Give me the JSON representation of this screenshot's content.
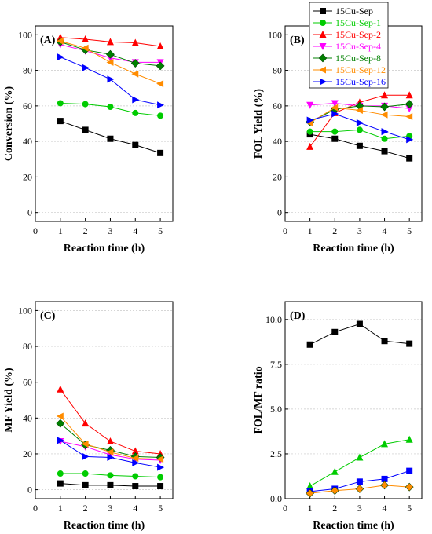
{
  "legend": [
    {
      "name": "15Cu-Sep",
      "color": "#000000",
      "marker": "square"
    },
    {
      "name": "15Cu-Sep-1",
      "color": "#00cc00",
      "marker": "circle"
    },
    {
      "name": "15Cu-Sep-2",
      "color": "#ff0000",
      "marker": "triangle-up"
    },
    {
      "name": "15Cu-Sep-4",
      "color": "#ff00ff",
      "marker": "triangle-down"
    },
    {
      "name": "15Cu-Sep-8",
      "color": "#008000",
      "marker": "diamond"
    },
    {
      "name": "15Cu-Sep-12",
      "color": "#ff8c00",
      "marker": "triangle-left"
    },
    {
      "name": "15Cu-Sep-16",
      "color": "#0000ff",
      "marker": "triangle-right"
    }
  ],
  "chart_data": [
    {
      "type": "line",
      "label": "(A)",
      "ylabel": "Conversion (%)",
      "xlabel": "Reaction time (h)",
      "xlim": [
        0,
        5.5
      ],
      "ylim": [
        -5,
        105
      ],
      "xticks": [
        0,
        1,
        2,
        3,
        4,
        5
      ],
      "yticks": [
        0,
        20,
        40,
        60,
        80,
        100
      ],
      "x": [
        1,
        2,
        3,
        4,
        5
      ],
      "series": [
        {
          "name": "15Cu-Sep",
          "values": [
            51.5,
            46.5,
            41.5,
            38,
            33.5
          ]
        },
        {
          "name": "15Cu-Sep-1",
          "values": [
            61.5,
            61,
            59.5,
            56,
            54.5
          ]
        },
        {
          "name": "15Cu-Sep-2",
          "values": [
            98.5,
            97.5,
            96,
            95.5,
            93.5
          ]
        },
        {
          "name": "15Cu-Sep-4",
          "values": [
            94.5,
            91,
            87,
            84.5,
            84.5
          ]
        },
        {
          "name": "15Cu-Sep-8",
          "values": [
            96,
            91.5,
            89,
            84,
            82.5
          ]
        },
        {
          "name": "15Cu-Sep-12",
          "values": [
            96.5,
            92.5,
            84.5,
            78,
            72.5
          ]
        },
        {
          "name": "15Cu-Sep-16",
          "values": [
            87.5,
            81.5,
            75,
            63.5,
            60.5
          ]
        }
      ]
    },
    {
      "type": "line",
      "label": "(B)",
      "ylabel": "FOL Yield (%)",
      "xlabel": "Reaction time (h)",
      "xlim": [
        0,
        5.5
      ],
      "ylim": [
        -5,
        105
      ],
      "xticks": [
        0,
        1,
        2,
        3,
        4,
        5
      ],
      "yticks": [
        0,
        20,
        40,
        60,
        80,
        100
      ],
      "x": [
        1,
        2,
        3,
        4,
        5
      ],
      "series": [
        {
          "name": "15Cu-Sep",
          "values": [
            44,
            41.5,
            37.5,
            34.5,
            30.5
          ]
        },
        {
          "name": "15Cu-Sep-1",
          "values": [
            45.5,
            45.5,
            46.5,
            41.5,
            43
          ]
        },
        {
          "name": "15Cu-Sep-2",
          "values": [
            37,
            56,
            62,
            66,
            66
          ]
        },
        {
          "name": "15Cu-Sep-4",
          "values": [
            60.5,
            61.5,
            60,
            60,
            58.5
          ]
        },
        {
          "name": "15Cu-Sep-8",
          "values": [
            51,
            58,
            60,
            59.5,
            61
          ]
        },
        {
          "name": "15Cu-Sep-12",
          "values": [
            50.5,
            59,
            57.5,
            55,
            54
          ]
        },
        {
          "name": "15Cu-Sep-16",
          "values": [
            52,
            55.5,
            50.5,
            45.5,
            41
          ]
        }
      ]
    },
    {
      "type": "line",
      "label": "(C)",
      "ylabel": "MF Yield (%)",
      "xlabel": "Reaction time (h)",
      "xlim": [
        0,
        5.5
      ],
      "ylim": [
        -5,
        105
      ],
      "xticks": [
        0,
        1,
        2,
        3,
        4,
        5
      ],
      "yticks": [
        0,
        20,
        40,
        60,
        80,
        100
      ],
      "x": [
        1,
        2,
        3,
        4,
        5
      ],
      "series": [
        {
          "name": "15Cu-Sep",
          "values": [
            3.5,
            2.5,
            2.5,
            2,
            2
          ]
        },
        {
          "name": "15Cu-Sep-1",
          "values": [
            9,
            9,
            8,
            7.5,
            7
          ]
        },
        {
          "name": "15Cu-Sep-2",
          "values": [
            56,
            37,
            27,
            21.5,
            20
          ]
        },
        {
          "name": "15Cu-Sep-4",
          "values": [
            27,
            24,
            19.5,
            17,
            16.5
          ]
        },
        {
          "name": "15Cu-Sep-8",
          "values": [
            37,
            25,
            22,
            18.5,
            18
          ]
        },
        {
          "name": "15Cu-Sep-12",
          "values": [
            41,
            25.5,
            21,
            17.5,
            17
          ]
        },
        {
          "name": "15Cu-Sep-16",
          "values": [
            27.5,
            18.5,
            18,
            15,
            12.5
          ]
        }
      ]
    },
    {
      "type": "line",
      "label": "(D)",
      "ylabel": "FOL/MF ratio",
      "xlabel": "Reaction time (h)",
      "xlim": [
        0,
        5.5
      ],
      "ylim": [
        0,
        11
      ],
      "xticks": [
        0,
        1,
        2,
        3,
        4,
        5
      ],
      "yticks": [
        0.0,
        2.5,
        5.0,
        7.5,
        10.0
      ],
      "ytick_labels": [
        "0.0",
        "2.5",
        "5.0",
        "7.5",
        "10.0"
      ],
      "x": [
        1,
        2,
        3,
        4,
        5
      ],
      "series": [
        {
          "name": "15Cu-Sep",
          "color": "#000000",
          "marker": "square",
          "values": [
            8.6,
            9.3,
            9.75,
            8.8,
            8.65
          ]
        },
        {
          "name": "15Cu-Sep-1",
          "color": "#00cc00",
          "marker": "triangle-up",
          "values": [
            0.7,
            1.5,
            2.3,
            3.05,
            3.3
          ]
        },
        {
          "name": "15Cu-Sep-16",
          "color": "#0000ff",
          "marker": "square",
          "values": [
            0.4,
            0.55,
            0.95,
            1.1,
            1.55
          ]
        },
        {
          "name": "15Cu-Sep-12",
          "color": "#ff8c00",
          "marker": "diamond",
          "values": [
            0.3,
            0.45,
            0.55,
            0.75,
            0.65
          ]
        }
      ]
    }
  ]
}
